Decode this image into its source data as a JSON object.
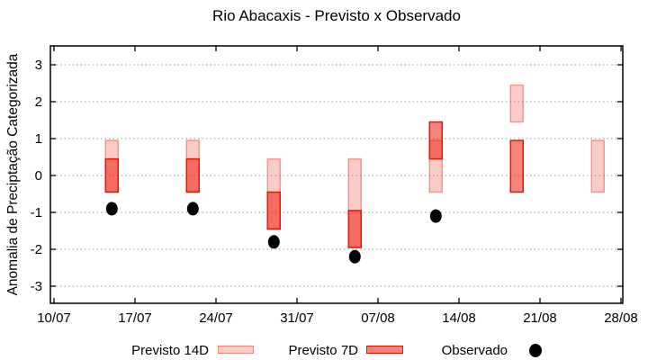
{
  "title": "Rio Abacaxis - Previsto x Observado",
  "chart_data": {
    "type": "bar",
    "subtype": "forecast-range-bars-with-observed-scatter",
    "title": "Rio Abacaxis - Previsto x Observado",
    "xlabel": "",
    "ylabel": "Anomalia de Preciptação Categorizada",
    "ylim": [
      -3.5,
      3.5
    ],
    "yticks": [
      3,
      2,
      1,
      0,
      -1,
      -2,
      -3
    ],
    "xticks": [
      {
        "label": "10/07",
        "day": 0
      },
      {
        "label": "17/07",
        "day": 7
      },
      {
        "label": "24/07",
        "day": 14
      },
      {
        "label": "31/07",
        "day": 21
      },
      {
        "label": "07/08",
        "day": 28
      },
      {
        "label": "14/08",
        "day": 35
      },
      {
        "label": "21/08",
        "day": 42
      },
      {
        "label": "28/08",
        "day": 49
      }
    ],
    "x_span_days": 49,
    "grid": "horizontal-dotted-gray",
    "legend_position": "bottom",
    "colors": {
      "previsto14d_fill": "#fbccc6",
      "previsto14d_border": "#f1a49a",
      "previsto7d_fill": "#f9837b",
      "previsto7d_border": "#e81506",
      "observado": "#000000",
      "grid": "#999999"
    },
    "series": [
      {
        "name": "Previsto 14D",
        "style": "range-bar",
        "points": [
          {
            "date": "15/07",
            "day": 5,
            "low": -0.45,
            "high": 0.95
          },
          {
            "date": "22/07",
            "day": 12,
            "low": -0.45,
            "high": 0.95
          },
          {
            "date": "29/07",
            "day": 19,
            "low": -1.45,
            "high": 0.45
          },
          {
            "date": "05/08",
            "day": 26,
            "low": -1.95,
            "high": 0.45
          },
          {
            "date": "12/08",
            "day": 33,
            "low": -0.45,
            "high": 0.95
          },
          {
            "date": "19/08",
            "day": 40,
            "low": 1.45,
            "high": 2.45
          },
          {
            "date": "26/08",
            "day": 47,
            "low": -0.45,
            "high": 0.95
          }
        ]
      },
      {
        "name": "Previsto 7D",
        "style": "range-bar",
        "points": [
          {
            "date": "15/07",
            "day": 5,
            "low": -0.45,
            "high": 0.45
          },
          {
            "date": "22/07",
            "day": 12,
            "low": -0.45,
            "high": 0.45
          },
          {
            "date": "29/07",
            "day": 19,
            "low": -1.45,
            "high": -0.45
          },
          {
            "date": "05/08",
            "day": 26,
            "low": -1.95,
            "high": -0.95
          },
          {
            "date": "12/08",
            "day": 33,
            "low": 0.45,
            "high": 1.45
          },
          {
            "date": "19/08",
            "day": 40,
            "low": -0.45,
            "high": 0.95
          }
        ]
      },
      {
        "name": "Observado",
        "style": "scatter",
        "points": [
          {
            "date": "15/07",
            "day": 5,
            "value": -0.9
          },
          {
            "date": "22/07",
            "day": 12,
            "value": -0.9
          },
          {
            "date": "29/07",
            "day": 19,
            "value": -1.8
          },
          {
            "date": "05/08",
            "day": 26,
            "value": -2.2
          },
          {
            "date": "12/08",
            "day": 33,
            "value": -1.1
          }
        ]
      }
    ]
  },
  "legend": {
    "items": [
      {
        "label": "Previsto 14D",
        "swatch": "light-pink-box"
      },
      {
        "label": "Previsto 7D",
        "swatch": "red-box"
      },
      {
        "label": "Observado",
        "swatch": "black-dot"
      }
    ]
  }
}
